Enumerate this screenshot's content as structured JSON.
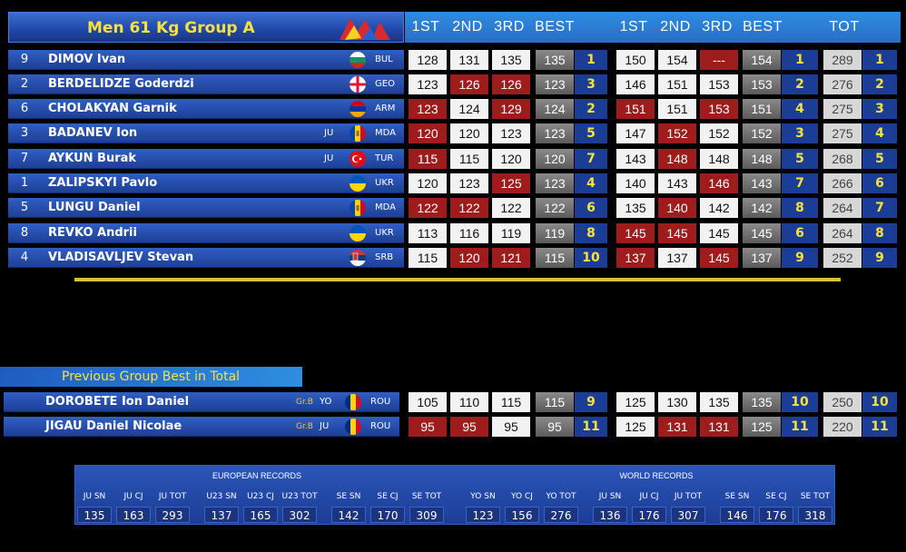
{
  "title": "Men 61 Kg Group A",
  "col_headers": {
    "snatch": [
      "1ST",
      "2ND",
      "3RD",
      "BEST"
    ],
    "cj": [
      "1ST",
      "2ND",
      "3RD",
      "BEST"
    ],
    "total": "TOT"
  },
  "athletes": [
    {
      "lot": "9",
      "name": "DIMOV Ivan",
      "cat": "",
      "nat": "BUL",
      "flag": "bul",
      "sn": [
        [
          "128",
          "g"
        ],
        [
          "131",
          "g"
        ],
        [
          "135",
          "g"
        ]
      ],
      "sn_best": "135",
      "sn_rank": "1",
      "cj": [
        [
          "150",
          "g"
        ],
        [
          "154",
          "g"
        ],
        [
          "---",
          "b"
        ]
      ],
      "cj_best": "154",
      "cj_rank": "1",
      "tot": "289",
      "tot_rank": "1"
    },
    {
      "lot": "2",
      "name": "BERDELIDZE Goderdzi",
      "cat": "",
      "nat": "GEO",
      "flag": "geo",
      "sn": [
        [
          "123",
          "g"
        ],
        [
          "126",
          "b"
        ],
        [
          "126",
          "b"
        ]
      ],
      "sn_best": "123",
      "sn_rank": "3",
      "cj": [
        [
          "146",
          "g"
        ],
        [
          "151",
          "g"
        ],
        [
          "153",
          "g"
        ]
      ],
      "cj_best": "153",
      "cj_rank": "2",
      "tot": "276",
      "tot_rank": "2"
    },
    {
      "lot": "6",
      "name": "CHOLAKYAN Garnik",
      "cat": "",
      "nat": "ARM",
      "flag": "arm",
      "sn": [
        [
          "123",
          "b"
        ],
        [
          "124",
          "g"
        ],
        [
          "129",
          "b"
        ]
      ],
      "sn_best": "124",
      "sn_rank": "2",
      "cj": [
        [
          "151",
          "b"
        ],
        [
          "151",
          "g"
        ],
        [
          "153",
          "b"
        ]
      ],
      "cj_best": "151",
      "cj_rank": "4",
      "tot": "275",
      "tot_rank": "3"
    },
    {
      "lot": "3",
      "name": "BADANEV Ion",
      "cat": "JU",
      "nat": "MDA",
      "flag": "mda",
      "sn": [
        [
          "120",
          "b"
        ],
        [
          "120",
          "g"
        ],
        [
          "123",
          "g"
        ]
      ],
      "sn_best": "123",
      "sn_rank": "5",
      "cj": [
        [
          "147",
          "g"
        ],
        [
          "152",
          "b"
        ],
        [
          "152",
          "g"
        ]
      ],
      "cj_best": "152",
      "cj_rank": "3",
      "tot": "275",
      "tot_rank": "4"
    },
    {
      "lot": "7",
      "name": "AYKUN Burak",
      "cat": "JU",
      "nat": "TUR",
      "flag": "tur",
      "sn": [
        [
          "115",
          "b"
        ],
        [
          "115",
          "g"
        ],
        [
          "120",
          "g"
        ]
      ],
      "sn_best": "120",
      "sn_rank": "7",
      "cj": [
        [
          "143",
          "g"
        ],
        [
          "148",
          "b"
        ],
        [
          "148",
          "g"
        ]
      ],
      "cj_best": "148",
      "cj_rank": "5",
      "tot": "268",
      "tot_rank": "5"
    },
    {
      "lot": "1",
      "name": "ZALIPSKYI Pavlo",
      "cat": "",
      "nat": "UKR",
      "flag": "ukr",
      "sn": [
        [
          "120",
          "g"
        ],
        [
          "123",
          "g"
        ],
        [
          "125",
          "b"
        ]
      ],
      "sn_best": "123",
      "sn_rank": "4",
      "cj": [
        [
          "140",
          "g"
        ],
        [
          "143",
          "g"
        ],
        [
          "146",
          "b"
        ]
      ],
      "cj_best": "143",
      "cj_rank": "7",
      "tot": "266",
      "tot_rank": "6"
    },
    {
      "lot": "5",
      "name": "LUNGU Daniel",
      "cat": "",
      "nat": "MDA",
      "flag": "mda",
      "sn": [
        [
          "122",
          "b"
        ],
        [
          "122",
          "b"
        ],
        [
          "122",
          "g"
        ]
      ],
      "sn_best": "122",
      "sn_rank": "6",
      "cj": [
        [
          "135",
          "g"
        ],
        [
          "140",
          "b"
        ],
        [
          "142",
          "g"
        ]
      ],
      "cj_best": "142",
      "cj_rank": "8",
      "tot": "264",
      "tot_rank": "7"
    },
    {
      "lot": "8",
      "name": "REVKO Andrii",
      "cat": "",
      "nat": "UKR",
      "flag": "ukr",
      "sn": [
        [
          "113",
          "g"
        ],
        [
          "116",
          "g"
        ],
        [
          "119",
          "g"
        ]
      ],
      "sn_best": "119",
      "sn_rank": "8",
      "cj": [
        [
          "145",
          "b"
        ],
        [
          "145",
          "b"
        ],
        [
          "145",
          "g"
        ]
      ],
      "cj_best": "145",
      "cj_rank": "6",
      "tot": "264",
      "tot_rank": "8"
    },
    {
      "lot": "4",
      "name": "VLADISAVLJEV Stevan",
      "cat": "",
      "nat": "SRB",
      "flag": "srb",
      "sn": [
        [
          "115",
          "g"
        ],
        [
          "120",
          "b"
        ],
        [
          "121",
          "b"
        ]
      ],
      "sn_best": "115",
      "sn_rank": "10",
      "cj": [
        [
          "137",
          "b"
        ],
        [
          "137",
          "g"
        ],
        [
          "145",
          "b"
        ]
      ],
      "cj_best": "137",
      "cj_rank": "9",
      "tot": "252",
      "tot_rank": "9"
    }
  ],
  "prev": {
    "title": "Previous Group Best in Total",
    "athletes": [
      {
        "name": "DOROBETE Ion Daniel",
        "grp": "Gr.B",
        "cat": "YO",
        "nat": "ROU",
        "flag": "rou",
        "sn": [
          [
            "105",
            "g"
          ],
          [
            "110",
            "g"
          ],
          [
            "115",
            "g"
          ]
        ],
        "sn_best": "115",
        "sn_rank": "9",
        "cj": [
          [
            "125",
            "g"
          ],
          [
            "130",
            "g"
          ],
          [
            "135",
            "g"
          ]
        ],
        "cj_best": "135",
        "cj_rank": "10",
        "tot": "250",
        "tot_rank": "10"
      },
      {
        "name": "JIGAU Daniel Nicolae",
        "grp": "Gr.B",
        "cat": "JU",
        "nat": "ROU",
        "flag": "rou",
        "sn": [
          [
            "95",
            "b"
          ],
          [
            "95",
            "b"
          ],
          [
            "95",
            "g"
          ]
        ],
        "sn_best": "95",
        "sn_rank": "11",
        "cj": [
          [
            "125",
            "g"
          ],
          [
            "131",
            "b"
          ],
          [
            "131",
            "b"
          ]
        ],
        "cj_best": "125",
        "cj_rank": "11",
        "tot": "220",
        "tot_rank": "11"
      }
    ]
  },
  "records": {
    "european_label": "EUROPEAN RECORDS",
    "world_label": "WORLD RECORDS",
    "european": [
      {
        "label": "JU SN",
        "value": "135"
      },
      {
        "label": "JU CJ",
        "value": "163"
      },
      {
        "label": "JU TOT",
        "value": "293"
      },
      {
        "label": "U23 SN",
        "value": "137"
      },
      {
        "label": "U23 CJ",
        "value": "165"
      },
      {
        "label": "U23 TOT",
        "value": "302"
      },
      {
        "label": "SE SN",
        "value": "142"
      },
      {
        "label": "SE CJ",
        "value": "170"
      },
      {
        "label": "SE TOT",
        "value": "309"
      }
    ],
    "world": [
      {
        "label": "YO SN",
        "value": "123"
      },
      {
        "label": "YO CJ",
        "value": "156"
      },
      {
        "label": "YO TOT",
        "value": "276"
      },
      {
        "label": "JU SN",
        "value": "136"
      },
      {
        "label": "JU CJ",
        "value": "176"
      },
      {
        "label": "JU TOT",
        "value": "307"
      },
      {
        "label": "SE SN",
        "value": "146"
      },
      {
        "label": "SE CJ",
        "value": "176"
      },
      {
        "label": "SE TOT",
        "value": "318"
      }
    ]
  }
}
